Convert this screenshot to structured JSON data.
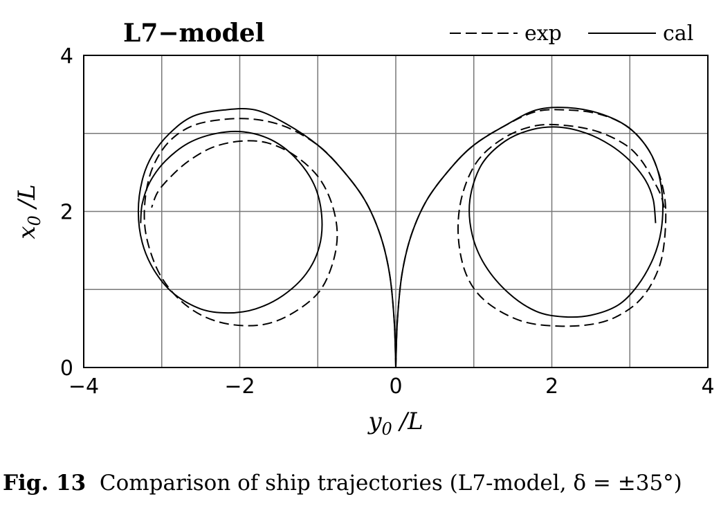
{
  "chart_data": {
    "type": "line",
    "title": "L7−model",
    "xlabel_main": "y",
    "xlabel_sub": "0",
    "xlabel_rest": " /L",
    "ylabel_main": "x",
    "ylabel_sub": "0",
    "ylabel_rest": " /L",
    "xlim": [
      -4,
      4
    ],
    "ylim": [
      0,
      4
    ],
    "xticks": [
      -4,
      -2,
      0,
      2,
      4
    ],
    "xtick_labels": [
      "−4",
      "−2",
      "0",
      "2",
      "4"
    ],
    "yticks": [
      0,
      2,
      4
    ],
    "ytick_labels": [
      "0",
      "2",
      "4"
    ],
    "x_grid": [
      -3,
      -2,
      -1,
      0,
      1,
      2,
      3
    ],
    "y_grid": [
      1,
      2,
      3
    ],
    "grid": true,
    "legend_position": "top-right",
    "series": [
      {
        "name": "exp",
        "style": "dashed",
        "x": [
          0,
          0.02,
          0.08,
          0.2,
          0.4,
          0.7,
          1.0,
          1.4,
          1.8,
          2.2,
          2.6,
          2.95,
          3.2,
          3.35,
          3.45,
          3.45,
          3.38,
          3.2,
          2.95,
          2.6,
          2.1,
          1.6,
          1.15,
          0.9,
          0.8,
          0.85,
          1.05,
          1.4,
          1.8,
          2.2,
          2.6,
          2.95,
          3.15,
          3.3,
          3.4,
          3.45
        ],
        "y": [
          0,
          0.6,
          1.2,
          1.7,
          2.15,
          2.55,
          2.85,
          3.1,
          3.28,
          3.3,
          3.25,
          3.1,
          2.85,
          2.55,
          2.15,
          1.7,
          1.3,
          0.95,
          0.72,
          0.57,
          0.53,
          0.6,
          0.85,
          1.2,
          1.7,
          2.2,
          2.65,
          2.95,
          3.1,
          3.1,
          3.02,
          2.85,
          2.65,
          2.4,
          2.2,
          2.0
        ]
      },
      {
        "name": "cal",
        "style": "solid",
        "x": [
          0,
          0.02,
          0.08,
          0.2,
          0.4,
          0.7,
          1.0,
          1.4,
          1.8,
          2.2,
          2.6,
          2.95,
          3.2,
          3.35,
          3.42,
          3.4,
          3.3,
          3.1,
          2.85,
          2.5,
          2.15,
          1.8,
          1.45,
          1.15,
          0.98,
          0.95,
          1.1,
          1.4,
          1.75,
          2.1,
          2.45,
          2.75,
          3.0,
          3.2,
          3.3,
          3.33
        ],
        "y": [
          0,
          0.6,
          1.2,
          1.7,
          2.15,
          2.55,
          2.85,
          3.1,
          3.3,
          3.33,
          3.26,
          3.1,
          2.85,
          2.55,
          2.15,
          1.75,
          1.4,
          1.05,
          0.8,
          0.67,
          0.65,
          0.72,
          0.95,
          1.3,
          1.7,
          2.15,
          2.6,
          2.9,
          3.05,
          3.08,
          3.0,
          2.85,
          2.65,
          2.4,
          2.15,
          1.85
        ]
      },
      {
        "name": "exp",
        "style": "dashed",
        "x": [
          0,
          -0.02,
          -0.08,
          -0.2,
          -0.4,
          -0.7,
          -1.0,
          -1.4,
          -1.8,
          -2.2,
          -2.6,
          -2.9,
          -3.1,
          -3.2,
          -3.22,
          -3.15,
          -3.0,
          -2.75,
          -2.45,
          -2.1,
          -1.7,
          -1.35,
          -1.0,
          -0.82,
          -0.75,
          -0.82,
          -1.0,
          -1.3,
          -1.65,
          -2.0,
          -2.35,
          -2.65,
          -2.88,
          -3.05,
          -3.13
        ],
        "y": [
          0,
          0.6,
          1.2,
          1.7,
          2.15,
          2.55,
          2.85,
          3.08,
          3.18,
          3.18,
          3.1,
          2.9,
          2.6,
          2.25,
          1.85,
          1.5,
          1.15,
          0.85,
          0.65,
          0.55,
          0.55,
          0.68,
          0.95,
          1.3,
          1.7,
          2.1,
          2.45,
          2.72,
          2.88,
          2.9,
          2.82,
          2.65,
          2.45,
          2.25,
          2.05
        ]
      },
      {
        "name": "cal",
        "style": "solid",
        "x": [
          0,
          -0.02,
          -0.08,
          -0.2,
          -0.4,
          -0.7,
          -1.0,
          -1.4,
          -1.8,
          -2.2,
          -2.6,
          -2.9,
          -3.12,
          -3.25,
          -3.3,
          -3.25,
          -3.1,
          -2.85,
          -2.5,
          -2.15,
          -1.8,
          -1.45,
          -1.15,
          -0.98,
          -0.95,
          -1.05,
          -1.3,
          -1.6,
          -1.95,
          -2.3,
          -2.65,
          -2.95,
          -3.15,
          -3.25,
          -3.27
        ],
        "y": [
          0,
          0.6,
          1.2,
          1.7,
          2.15,
          2.55,
          2.85,
          3.12,
          3.3,
          3.3,
          3.22,
          3.0,
          2.72,
          2.4,
          2.0,
          1.6,
          1.25,
          0.95,
          0.75,
          0.7,
          0.75,
          0.92,
          1.2,
          1.55,
          1.95,
          2.35,
          2.7,
          2.92,
          3.02,
          3.0,
          2.88,
          2.65,
          2.38,
          2.1,
          1.85
        ]
      }
    ],
    "legend": [
      {
        "label": "exp",
        "style": "dashed"
      },
      {
        "label": "cal",
        "style": "solid"
      }
    ]
  },
  "caption": {
    "label": "Fig. 13",
    "text": "Comparison of ship trajectories (L7-model, δ = ±35°)"
  }
}
